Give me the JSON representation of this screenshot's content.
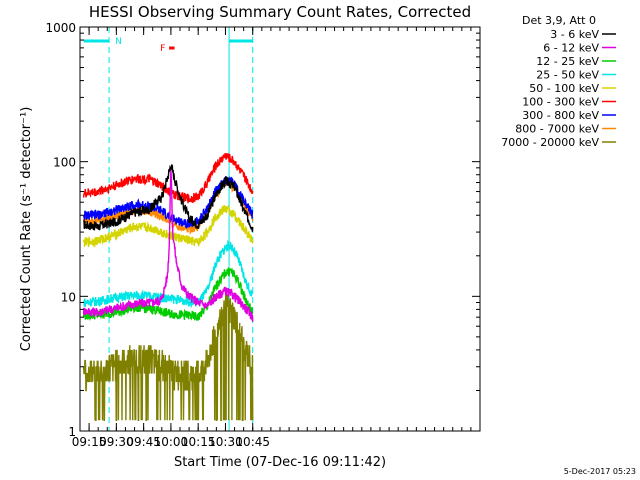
{
  "colors": {
    "background": "#ffffff",
    "axes": "#000000",
    "night_marker": "#00e5e5"
  },
  "chart_data": {
    "type": "line",
    "title": "HESSI Observing Summary Count Rates, Corrected",
    "xlabel": "Start Time (07-Dec-16 09:11:42)",
    "ylabel": "Corrected Count Rate (s⁻¹ detector⁻¹)",
    "y_scale": "log",
    "ylim": [
      1,
      1000
    ],
    "xlim_min_of_day": [
      550,
      770
    ],
    "x_ticks": [
      {
        "label": "09:15",
        "t": 555
      },
      {
        "label": "09:30",
        "t": 570
      },
      {
        "label": "09:45",
        "t": 585
      },
      {
        "label": "10:00",
        "t": 600
      },
      {
        "label": "10:15",
        "t": 615
      },
      {
        "label": "10:30",
        "t": 630
      },
      {
        "label": "10:45",
        "t": 645
      }
    ],
    "y_ticks": [
      {
        "label": "1",
        "v": 1
      },
      {
        "label": "10",
        "v": 10
      },
      {
        "label": "100",
        "v": 100
      },
      {
        "label": "1000",
        "v": 1000
      }
    ],
    "legend": {
      "placement": "right",
      "header": "Det 3,9, Att 0",
      "entries": [
        "3 - 6 keV",
        "6 - 12 keV",
        "12 - 25 keV",
        "25 - 50 keV",
        "50 - 100 keV",
        "100 - 300 keV",
        "300 - 800 keV",
        "800 - 7000 keV",
        "7000 - 20000 keV"
      ]
    },
    "annotations": {
      "night_label": "N",
      "flare_label": "F",
      "night_bars": [
        {
          "from": "09:12",
          "to": "09:26"
        },
        {
          "from": "10:32",
          "to": "10:45"
        }
      ],
      "flare_bar": {
        "from": "09:59",
        "to": "10:02"
      }
    },
    "series": [
      {
        "name": "3 - 6 keV",
        "color": "#000000",
        "x": [
          "09:12",
          "09:20",
          "09:30",
          "09:40",
          "09:48",
          "09:55",
          "09:58",
          "10:00",
          "10:02",
          "10:05",
          "10:10",
          "10:15",
          "10:20",
          "10:25",
          "10:30",
          "10:35",
          "10:40",
          "10:45"
        ],
        "y": [
          34,
          33,
          36,
          42,
          44,
          55,
          75,
          95,
          75,
          55,
          38,
          34,
          40,
          58,
          72,
          65,
          44,
          32
        ]
      },
      {
        "name": "6 - 12 keV",
        "color": "#e000e0",
        "x": [
          "09:12",
          "09:20",
          "09:30",
          "09:40",
          "09:50",
          "09:55",
          "09:58",
          "09:59",
          "10:00",
          "10:01",
          "10:03",
          "10:06",
          "10:10",
          "10:15",
          "10:20",
          "10:25",
          "10:30",
          "10:35",
          "10:40",
          "10:45"
        ],
        "y": [
          7.8,
          7.6,
          8.2,
          8.8,
          9.0,
          9.5,
          14,
          22,
          95,
          30,
          18,
          12,
          10,
          9,
          8.5,
          10,
          11,
          10,
          8.5,
          7
        ]
      },
      {
        "name": "12 - 25 keV",
        "color": "#00cc00",
        "x": [
          "09:12",
          "09:20",
          "09:30",
          "09:40",
          "09:50",
          "10:00",
          "10:10",
          "10:15",
          "10:20",
          "10:25",
          "10:30",
          "10:33",
          "10:37",
          "10:41",
          "10:45"
        ],
        "y": [
          7.2,
          7.3,
          7.6,
          8.3,
          8.0,
          7.4,
          7.2,
          7.0,
          8.5,
          12,
          15,
          15.5,
          13,
          9.5,
          7.5
        ]
      },
      {
        "name": "25 - 50 keV",
        "color": "#00e5e5",
        "x": [
          "09:12",
          "09:20",
          "09:30",
          "09:40",
          "09:50",
          "10:00",
          "10:10",
          "10:15",
          "10:20",
          "10:25",
          "10:30",
          "10:33",
          "10:37",
          "10:41",
          "10:45"
        ],
        "y": [
          9.0,
          9.2,
          9.8,
          10.2,
          10.0,
          9.6,
          9.2,
          9.0,
          11,
          18,
          23,
          24,
          19,
          13,
          10
        ]
      },
      {
        "name": "50 - 100 keV",
        "color": "#d4d400",
        "x": [
          "09:12",
          "09:20",
          "09:30",
          "09:40",
          "09:50",
          "10:00",
          "10:10",
          "10:15",
          "10:20",
          "10:25",
          "10:30",
          "10:35",
          "10:40",
          "10:45"
        ],
        "y": [
          25,
          26,
          29,
          33,
          32,
          28,
          26,
          25,
          30,
          40,
          45,
          40,
          32,
          26
        ]
      },
      {
        "name": "100 - 300 keV",
        "color": "#ff0000",
        "x": [
          "09:12",
          "09:20",
          "09:30",
          "09:40",
          "09:48",
          "09:55",
          "10:00",
          "10:05",
          "10:10",
          "10:15",
          "10:20",
          "10:25",
          "10:30",
          "10:35",
          "10:40",
          "10:45"
        ],
        "y": [
          58,
          60,
          67,
          75,
          74,
          66,
          58,
          55,
          53,
          55,
          70,
          95,
          112,
          100,
          78,
          60
        ]
      },
      {
        "name": "300 - 800 keV",
        "color": "#0000ff",
        "x": [
          "09:12",
          "09:20",
          "09:30",
          "09:40",
          "09:48",
          "09:55",
          "10:00",
          "10:05",
          "10:10",
          "10:15",
          "10:20",
          "10:25",
          "10:30",
          "10:35",
          "10:40",
          "10:45"
        ],
        "y": [
          40,
          40,
          44,
          48,
          47,
          43,
          38,
          36,
          35,
          36,
          45,
          62,
          73,
          68,
          52,
          40
        ]
      },
      {
        "name": "800 - 7000 keV",
        "color": "#ff8800",
        "x": [
          "09:12",
          "09:20",
          "09:30",
          "09:40",
          "09:48",
          "09:55",
          "10:00",
          "10:05",
          "10:10",
          "10:15",
          "10:20",
          "10:25",
          "10:30",
          "10:35",
          "10:40",
          "10:45"
        ],
        "y": [
          37,
          37,
          40,
          44,
          43,
          39,
          35,
          33,
          32,
          33,
          42,
          58,
          70,
          64,
          48,
          37
        ]
      },
      {
        "name": "7000 - 20000 keV",
        "color": "#808000",
        "x": [
          "09:12",
          "09:20",
          "09:30",
          "09:40",
          "09:50",
          "10:00",
          "10:10",
          "10:15",
          "10:20",
          "10:25",
          "10:30",
          "10:35",
          "10:40",
          "10:45"
        ],
        "y": [
          2.7,
          2.7,
          3.1,
          3.4,
          3.3,
          2.8,
          2.6,
          2.6,
          3.2,
          5.8,
          8.5,
          7.0,
          4.5,
          2.8
        ]
      }
    ]
  },
  "footer": {
    "timestamp": "5-Dec-2017 05:23"
  }
}
